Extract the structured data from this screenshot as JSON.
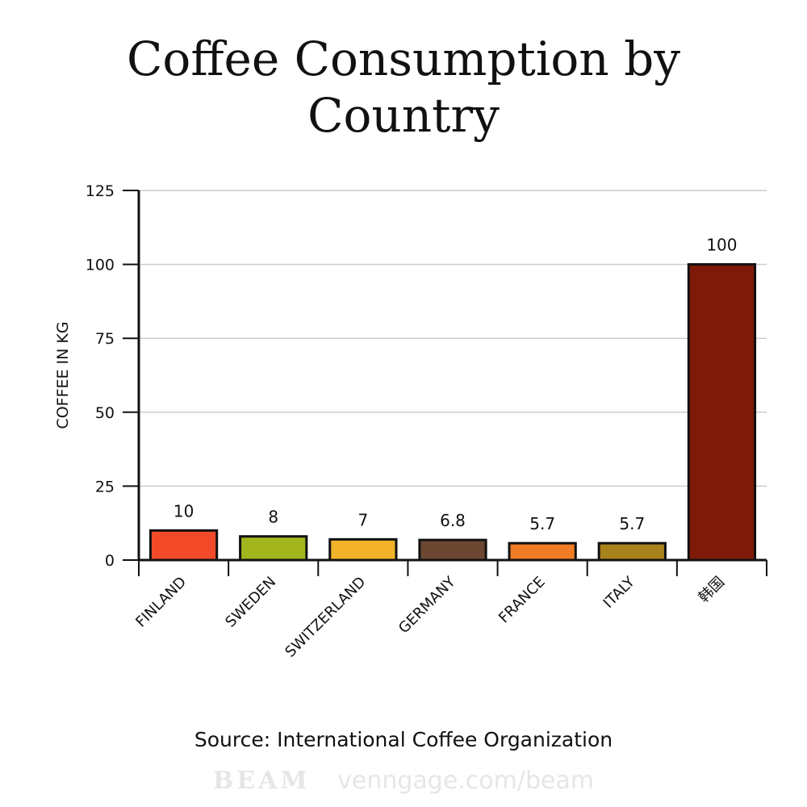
{
  "title": "Coffee Consumption by Country",
  "source": "Source: International Coffee Organization",
  "watermark": {
    "logo": "BEAM",
    "url": "venngage.com/beam"
  },
  "chart_data": {
    "type": "bar",
    "title": "Coffee Consumption by Country",
    "xlabel": "",
    "ylabel": "COFFEE IN KG",
    "ylim": [
      0,
      125
    ],
    "yticks": [
      0,
      25,
      50,
      75,
      100,
      125
    ],
    "grid": true,
    "categories": [
      "FINLAND",
      "SWEDEN",
      "SWITZERLAND",
      "GERMANY",
      "FRANCE",
      "ITALY",
      "韩国"
    ],
    "values": [
      10,
      8,
      7,
      6.8,
      5.7,
      5.7,
      100
    ],
    "value_labels": [
      "10",
      "8",
      "7",
      "6.8",
      "5.7",
      "5.7",
      "100"
    ],
    "colors": [
      "#f24a29",
      "#a3b51c",
      "#f2b22a",
      "#6b4630",
      "#f07d25",
      "#a8821b",
      "#801a08"
    ]
  }
}
